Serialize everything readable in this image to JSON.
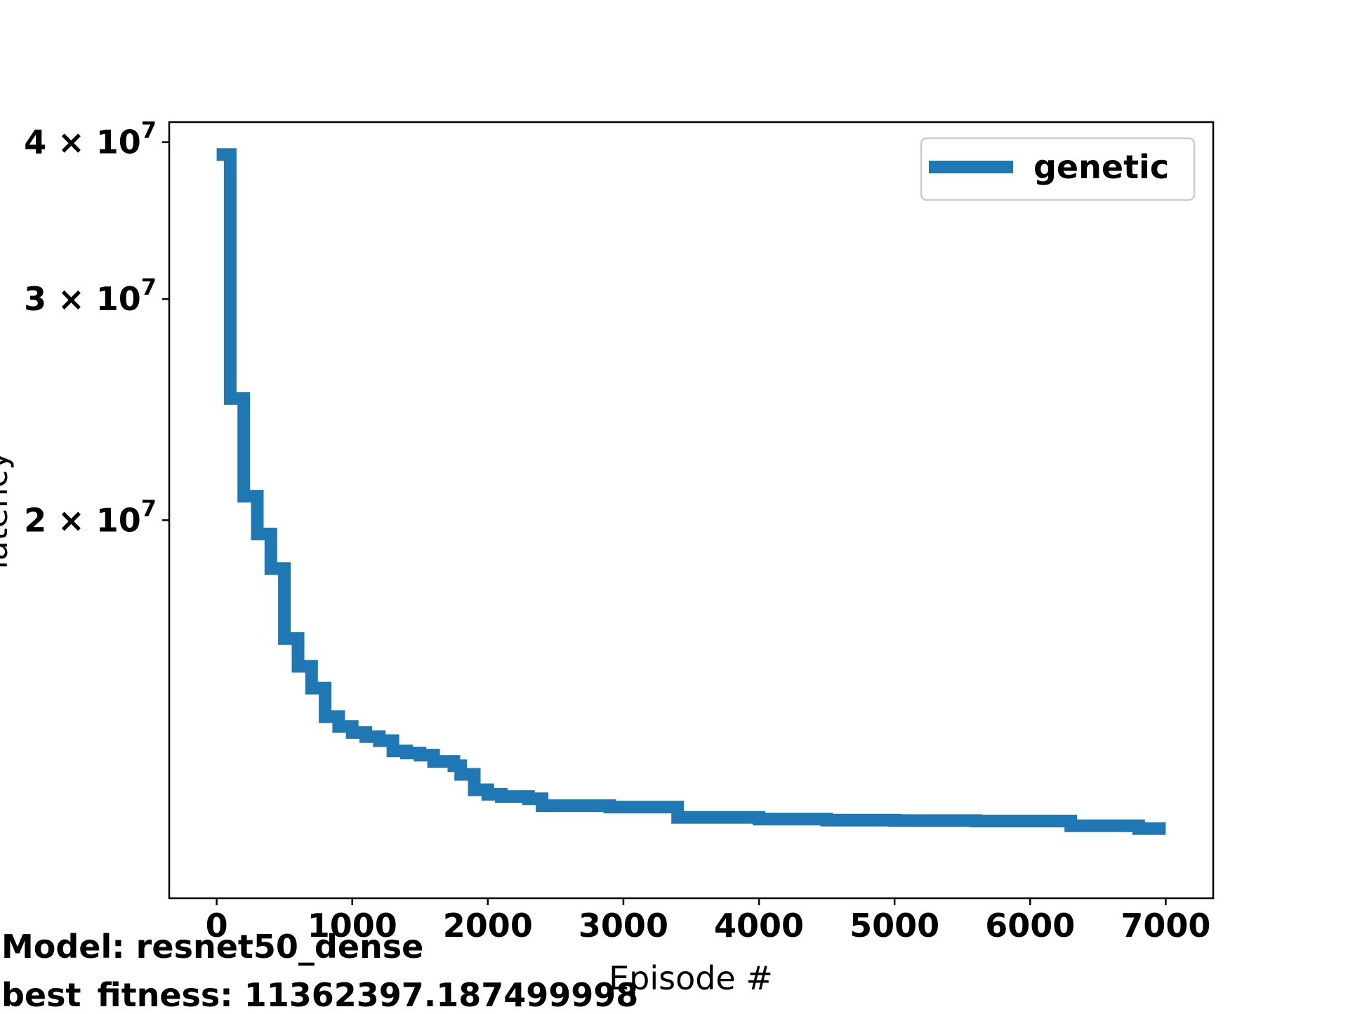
{
  "chart_data": {
    "type": "line",
    "title": "",
    "xlabel": "Episode #",
    "ylabel": "latency",
    "yscale": "log",
    "xlim": [
      -350,
      7350
    ],
    "ylim": [
      10000000,
      41500000
    ],
    "x_ticks": [
      0,
      1000,
      2000,
      3000,
      4000,
      5000,
      6000,
      7000
    ],
    "x_tick_labels": [
      "0",
      "1000",
      "2000",
      "3000",
      "4000",
      "5000",
      "6000",
      "7000"
    ],
    "y_ticks": [
      {
        "value": 20000000,
        "mantissa": "2",
        "base": "× 10",
        "exponent": "7"
      },
      {
        "value": 30000000,
        "mantissa": "3",
        "base": "× 10",
        "exponent": "7"
      },
      {
        "value": 40000000,
        "mantissa": "4",
        "base": "× 10",
        "exponent": "7"
      }
    ],
    "grid": false,
    "legend_position": "top-right",
    "series": [
      {
        "name": "genetic",
        "color": "#1f77b4",
        "step": true,
        "points": [
          [
            0,
            39100000
          ],
          [
            100,
            39100000
          ],
          [
            100,
            25000000
          ],
          [
            200,
            25000000
          ],
          [
            200,
            20900000
          ],
          [
            300,
            20900000
          ],
          [
            300,
            19500000
          ],
          [
            400,
            19500000
          ],
          [
            400,
            18300000
          ],
          [
            500,
            18300000
          ],
          [
            500,
            16100000
          ],
          [
            600,
            16100000
          ],
          [
            600,
            15300000
          ],
          [
            700,
            15300000
          ],
          [
            700,
            14700000
          ],
          [
            800,
            14700000
          ],
          [
            800,
            13950000
          ],
          [
            900,
            13950000
          ],
          [
            900,
            13700000
          ],
          [
            1000,
            13700000
          ],
          [
            1000,
            13550000
          ],
          [
            1100,
            13550000
          ],
          [
            1100,
            13450000
          ],
          [
            1200,
            13450000
          ],
          [
            1200,
            13350000
          ],
          [
            1300,
            13350000
          ],
          [
            1300,
            13100000
          ],
          [
            1400,
            13100000
          ],
          [
            1400,
            13050000
          ],
          [
            1500,
            13050000
          ],
          [
            1500,
            13000000
          ],
          [
            1600,
            13000000
          ],
          [
            1600,
            12850000
          ],
          [
            1750,
            12850000
          ],
          [
            1750,
            12750000
          ],
          [
            1800,
            12750000
          ],
          [
            1800,
            12550000
          ],
          [
            1900,
            12550000
          ],
          [
            1900,
            12200000
          ],
          [
            2000,
            12200000
          ],
          [
            2000,
            12100000
          ],
          [
            2100,
            12100000
          ],
          [
            2100,
            12050000
          ],
          [
            2300,
            12050000
          ],
          [
            2300,
            12000000
          ],
          [
            2400,
            12000000
          ],
          [
            2400,
            11850000
          ],
          [
            2900,
            11850000
          ],
          [
            2900,
            11820000
          ],
          [
            3400,
            11820000
          ],
          [
            3400,
            11600000
          ],
          [
            4000,
            11600000
          ],
          [
            4000,
            11560000
          ],
          [
            4500,
            11560000
          ],
          [
            4500,
            11540000
          ],
          [
            5000,
            11540000
          ],
          [
            5000,
            11530000
          ],
          [
            5600,
            11530000
          ],
          [
            5600,
            11520000
          ],
          [
            6300,
            11520000
          ],
          [
            6300,
            11420000
          ],
          [
            6800,
            11420000
          ],
          [
            6800,
            11362397
          ],
          [
            7000,
            11362397
          ]
        ]
      }
    ]
  },
  "footer": {
    "model": "Model: resnet50_dense",
    "best_fitness": "best_fitness: 11362397.187499998"
  }
}
